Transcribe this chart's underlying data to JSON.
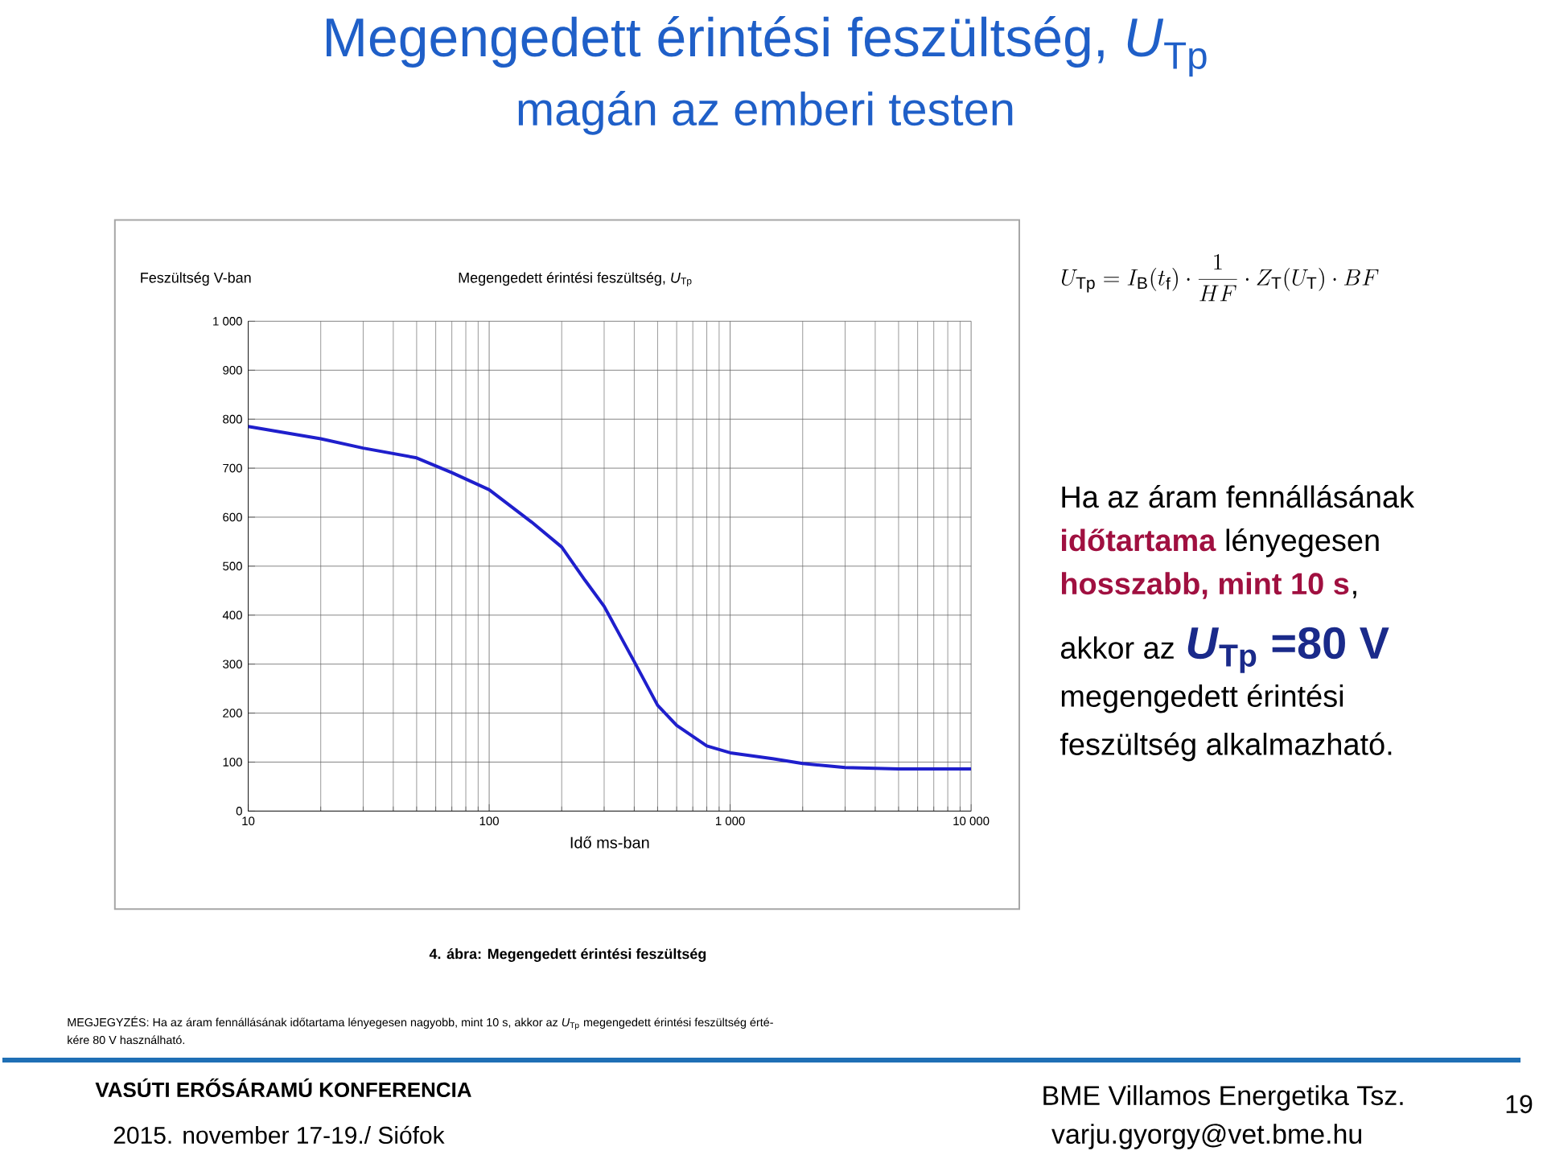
{
  "chart_data": {
    "type": "line",
    "title": "Megengedett érintési feszültség, *U*$_{Tp}$",
    "subtitle": "magán az emberi testen",
    "xlabel": "Idő ms-ban",
    "ylabel": "Feszültség V-ban",
    "x": [
      10,
      20,
      30,
      50,
      70,
      100,
      150,
      200,
      250,
      300,
      400,
      500,
      600,
      800,
      1000,
      1500,
      2000,
      3000,
      5000,
      10000
    ],
    "series": [
      {
        "color": "#1f1fcc",
        "values": [
          785,
          760,
          741,
          721,
          691,
          656,
          590,
          539,
          471,
          418,
          305,
          216,
          175,
          133,
          119,
          107,
          97,
          89,
          86,
          86
        ]
      }
    ],
    "xlim": [
      10,
      10000
    ],
    "ylim": [
      0,
      1000
    ],
    "log": "x",
    "grid": true,
    "marker": "none",
    "line_style": "solid",
    "xticks": [
      10,
      100,
      {
        "value": 1000,
        "label": "1 000"
      },
      {
        "value": 10000,
        "label": "10 000"
      }
    ],
    "yticks": [
      0,
      100,
      200,
      300,
      400,
      500,
      600,
      700,
      800,
      900,
      {
        "value": 1000,
        "label": "1 000"
      }
    ],
    "annotations": [
      "Megengedett érintési feszültség, *U*$_{Tp}$",
      "U_{\\mathrm{Tp}} = I_{\\mathrm{B}}(t_{\\mathrm{f}})\\cdot\\frac{1}{HF}\\cdot Z_{\\mathrm{T}}(U_{\\mathrm{T}})\\cdot BF",
      "Ha az áram fennállásának",
      "időtartama",
      "lényegesen",
      "hosszabb, mint 10 s",
      ",",
      "akkor az",
      "*U*$_{Tp}$ =80 V",
      "megengedett érintési",
      "feszültség alkalmazható.",
      "4. ábra: Megengedett érintési feszültség",
      "MEGJEGYZÉS: Ha az áram fennállásának időtartama lényegesen nagyobb, mint 10 s, akkor az *U*$_{Tp}$ megengedett érintési feszültség érté-",
      "kére 80 V használható.",
      "VASÚTI ERŐSÁRAMÚ KONFERENCIA",
      "2015. november 17-19./ Siófok",
      "BME Villamos Energetika Tsz.",
      "varju.gyorgy@vet.bme.hu",
      "19"
    ]
  }
}
